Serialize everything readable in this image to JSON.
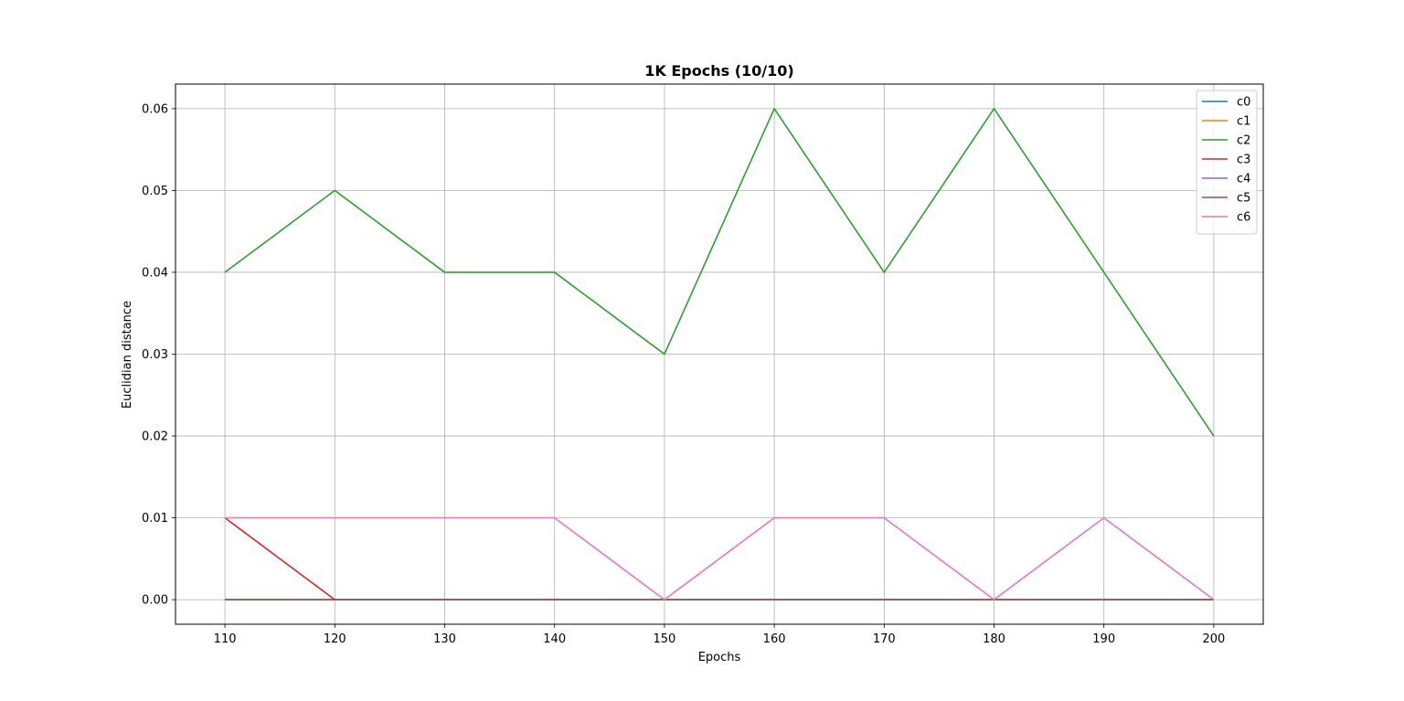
{
  "chart_data": {
    "type": "line",
    "title": "1K Epochs (10/10)",
    "xlabel": "Epochs",
    "ylabel": "Euclidian distance",
    "x": [
      110,
      120,
      130,
      140,
      150,
      160,
      170,
      180,
      190,
      200
    ],
    "x_ticks": [
      "110",
      "120",
      "130",
      "140",
      "150",
      "160",
      "170",
      "180",
      "190",
      "200"
    ],
    "y_ticks": [
      "0.00",
      "0.01",
      "0.02",
      "0.03",
      "0.04",
      "0.05",
      "0.06"
    ],
    "y_tick_values": [
      0.0,
      0.01,
      0.02,
      0.03,
      0.04,
      0.05,
      0.06
    ],
    "xlim": [
      105.5,
      204.5
    ],
    "ylim": [
      -0.003,
      0.063
    ],
    "grid": true,
    "legend_position": "top-right",
    "series": [
      {
        "name": "c0",
        "color": "#1f77b4",
        "values": [
          0,
          0,
          0,
          0,
          0,
          0,
          0,
          0,
          0,
          0
        ]
      },
      {
        "name": "c1",
        "color": "#ff7f0e",
        "values": [
          0,
          0,
          0,
          0,
          0,
          0,
          0,
          0,
          0,
          0
        ]
      },
      {
        "name": "c2",
        "color": "#2ca02c",
        "values": [
          0.04,
          0.05,
          0.04,
          0.04,
          0.03,
          0.06,
          0.04,
          0.06,
          0.04,
          0.02
        ]
      },
      {
        "name": "c3",
        "color": "#d62728",
        "values": [
          0.01,
          0,
          0,
          0,
          0,
          0,
          0,
          0,
          0,
          0
        ]
      },
      {
        "name": "c4",
        "color": "#9467bd",
        "values": [
          0,
          0,
          0,
          0,
          0,
          0,
          0,
          0,
          0,
          0
        ]
      },
      {
        "name": "c5",
        "color": "#8c564b",
        "values": [
          0,
          0,
          0,
          0,
          0,
          0,
          0,
          0,
          0,
          0
        ]
      },
      {
        "name": "c6",
        "color": "#e377c2",
        "values": [
          0.01,
          0.01,
          0.01,
          0.01,
          0,
          0.01,
          0.01,
          0,
          0.01,
          0
        ]
      }
    ]
  }
}
